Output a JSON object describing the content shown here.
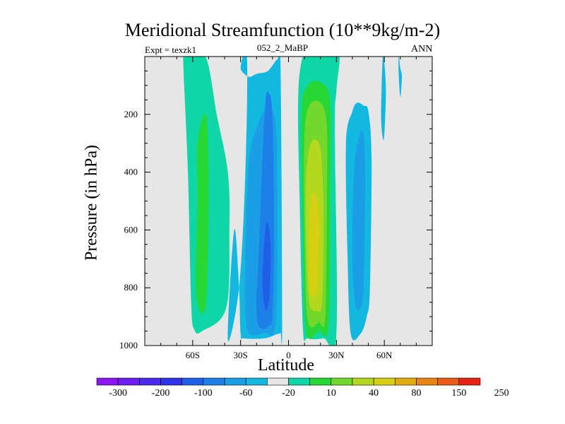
{
  "chart_data": {
    "type": "contour",
    "title": "Meridional Streamfunction (10**9kg/m-2)",
    "left_label": "Expt = texzk1",
    "center_label": "052_2_MaBP",
    "right_label": "ANN",
    "xlabel": "Latitude",
    "ylabel": "Pressure (in hPa)",
    "x_range": [
      -90,
      90
    ],
    "y_range": [
      0,
      1000
    ],
    "x_ticks": [
      {
        "value": -60,
        "label": "60S"
      },
      {
        "value": -30,
        "label": "30S"
      },
      {
        "value": 0,
        "label": "0"
      },
      {
        "value": 30,
        "label": "30N"
      },
      {
        "value": 60,
        "label": "60N"
      }
    ],
    "y_ticks": [
      {
        "value": 200,
        "label": "200"
      },
      {
        "value": 400,
        "label": "400"
      },
      {
        "value": 600,
        "label": "600"
      },
      {
        "value": 800,
        "label": "800"
      },
      {
        "value": 1000,
        "label": "1000"
      }
    ],
    "background_color": "#e6e6e6",
    "colorbar": {
      "colors": [
        "#8a17f0",
        "#6d1ef0",
        "#4d2bea",
        "#2e35e6",
        "#1f5ee6",
        "#1d7fe8",
        "#1b9ee6",
        "#13b8e0",
        "#e6e6e6",
        "#0fd6a6",
        "#27d835",
        "#74d82c",
        "#b4d81e",
        "#d8cf12",
        "#e4ad0f",
        "#e88512",
        "#ea5b14",
        "#e82316"
      ],
      "labels": [
        "-300",
        "-200",
        "-100",
        "-60",
        "-20",
        "10",
        "40",
        "80",
        "150",
        "250"
      ]
    },
    "regions": [
      {
        "name": "sh-polar-cell",
        "color": "#0fd6a6",
        "lon": [
          -64,
          -52,
          -45,
          -38,
          -37,
          -39,
          -54,
          -59,
          -61,
          -63,
          -66
        ],
        "p": [
          0,
          0,
          200,
          400,
          600,
          870,
          950,
          945,
          850,
          400,
          0
        ]
      },
      {
        "name": "sh-polar-core",
        "color": "#27d835",
        "lon": [
          -57,
          -52,
          -50,
          -51,
          -54,
          -58,
          -57
        ],
        "p": [
          300,
          200,
          400,
          800,
          890,
          800,
          500
        ]
      },
      {
        "name": "sh-ferrel-cell",
        "color": "#13b8e0",
        "lon": [
          -38,
          -31,
          -27,
          -26,
          -30,
          -25,
          -20,
          -13,
          -7,
          -5,
          -4,
          -5,
          -7,
          -15,
          -28,
          -30,
          -31,
          -34
        ],
        "p": [
          980,
          800,
          400,
          0,
          40,
          70,
          60,
          50,
          10,
          30,
          920,
          955,
          960,
          975,
          975,
          960,
          800,
          600
        ]
      },
      {
        "name": "sh-ferrel-mid",
        "color": "#1b9ee6",
        "lon": [
          -28,
          -25,
          -18,
          -12,
          -8,
          -7,
          -8,
          -15,
          -26,
          -27
        ],
        "p": [
          900,
          380,
          220,
          180,
          240,
          500,
          920,
          955,
          940,
          700
        ]
      },
      {
        "name": "sh-ferrel-inner",
        "color": "#1d7fe8",
        "lon": [
          -20,
          -15,
          -12,
          -10,
          -9,
          -10,
          -12,
          -17,
          -20,
          -21
        ],
        "p": [
          820,
          200,
          130,
          220,
          600,
          890,
          930,
          940,
          880,
          500
        ]
      },
      {
        "name": "sh-ferrel-core",
        "color": "#1f5ee6",
        "lon": [
          -16,
          -14,
          -12,
          -11,
          -12,
          -14,
          -16
        ],
        "p": [
          720,
          580,
          600,
          680,
          830,
          880,
          820
        ]
      },
      {
        "name": "tropical-cell",
        "color": "#0fd6a6",
        "lon": [
          6,
          9,
          15,
          24,
          28,
          32,
          30,
          29,
          30,
          22,
          12,
          9,
          7
        ],
        "p": [
          150,
          0,
          0,
          0,
          0,
          0,
          120,
          260,
          960,
          975,
          975,
          940,
          500
        ]
      },
      {
        "name": "tropical-cell-mid",
        "color": "#27d835",
        "lon": [
          8,
          12,
          20,
          26,
          26,
          25,
          19,
          11,
          9
        ],
        "p": [
          200,
          100,
          90,
          160,
          500,
          930,
          950,
          950,
          600
        ]
      },
      {
        "name": "tropical-cell-inner",
        "color": "#74d82c",
        "lon": [
          10,
          13,
          20,
          24,
          24,
          23,
          19,
          12,
          10
        ],
        "p": [
          280,
          170,
          160,
          240,
          500,
          900,
          920,
          910,
          600
        ]
      },
      {
        "name": "tropical-cell-core",
        "color": "#b4d81e",
        "lon": [
          11,
          14,
          19,
          21,
          22,
          21,
          18,
          13,
          11
        ],
        "p": [
          420,
          300,
          300,
          380,
          600,
          850,
          880,
          850,
          650
        ]
      },
      {
        "name": "tropical-cell-max",
        "color": "#d8cf12",
        "lon": [
          13,
          15,
          18,
          19,
          18,
          15,
          13
        ],
        "p": [
          600,
          480,
          500,
          600,
          800,
          830,
          780
        ]
      },
      {
        "name": "nh-ferrel-cell",
        "color": "#13b8e0",
        "lon": [
          36,
          40,
          43,
          47,
          50,
          52,
          51,
          49,
          45,
          39,
          37
        ],
        "p": [
          300,
          190,
          160,
          170,
          190,
          350,
          800,
          900,
          960,
          960,
          700
        ]
      },
      {
        "name": "nh-ferrel-core",
        "color": "#1b9ee6",
        "lon": [
          41,
          44,
          47,
          48,
          47,
          45,
          42,
          40
        ],
        "p": [
          400,
          280,
          270,
          450,
          800,
          870,
          860,
          700
        ]
      },
      {
        "name": "nh-high-lat-blob-1",
        "color": "#13b8e0",
        "lon": [
          59,
          60,
          61,
          60,
          59,
          58
        ],
        "p": [
          0,
          20,
          120,
          270,
          280,
          200
        ]
      },
      {
        "name": "nh-high-lat-blob-2",
        "color": "#13b8e0",
        "lon": [
          69,
          70,
          71,
          70,
          69
        ],
        "p": [
          0,
          40,
          70,
          140,
          60
        ]
      }
    ]
  }
}
